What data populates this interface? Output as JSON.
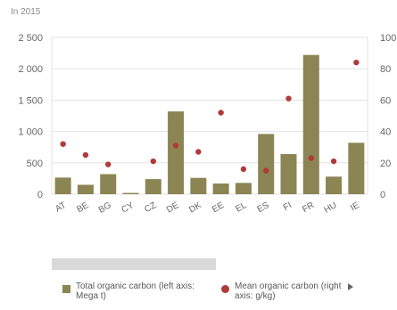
{
  "chart_data": {
    "type": "bar",
    "subtitle": "In 2015",
    "categories": [
      "AT",
      "BE",
      "BG",
      "CY",
      "CZ",
      "DE",
      "DK",
      "EE",
      "EL",
      "ES",
      "FI",
      "FR",
      "HU",
      "IE"
    ],
    "y_left": {
      "ticks": [
        "0",
        "500",
        "1 000",
        "1 500",
        "2 000",
        "2 500"
      ],
      "ylim": [
        0,
        2500
      ]
    },
    "y_right": {
      "ticks": [
        "0",
        "20",
        "40",
        "60",
        "80",
        "100"
      ],
      "ylim": [
        0,
        100
      ]
    },
    "series": [
      {
        "name": "Total organic carbon (left axis: Mega t)",
        "type": "bar",
        "axis": "left",
        "color": "#8b8453",
        "values": [
          265,
          150,
          320,
          20,
          240,
          1320,
          260,
          170,
          180,
          960,
          640,
          2220,
          280,
          820
        ]
      },
      {
        "name": "Mean organic carbon (right axis: g/kg)",
        "type": "scatter",
        "axis": "right",
        "color": "#b03a3a",
        "values": [
          32,
          25,
          19,
          null,
          21,
          31,
          27,
          52,
          16,
          15,
          61,
          23,
          21,
          84
        ]
      }
    ],
    "legend_position": "bottom",
    "grid": true
  },
  "legend": {
    "item1_label": "Total organic carbon (left axis: Mega t)",
    "item2_label": "Mean organic carbon (right axis: g/kg)"
  },
  "colors": {
    "bar": "#8b8453",
    "dot": "#b03a3a",
    "grid": "#e3e3e3"
  }
}
